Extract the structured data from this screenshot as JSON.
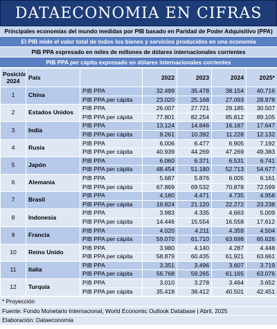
{
  "header": {
    "title": "DATAECONOMIA EN CIFRAS"
  },
  "info": [
    "Principales economías del mundo medidas por PIB basado en Paridad de Poder Adquisitivo (PPA)",
    "El PIB mide el valor total de todos los bienes y servicios producidos en una economía",
    "PIB PPA expresado en miles de millones de dólares internacionales corrientes",
    "PIB PPA per cápita expresado en dólares internacionales corrientes"
  ],
  "table": {
    "columns": [
      "Posición 2024",
      "País",
      "2022",
      "2023",
      "2024",
      "2025*"
    ],
    "row_labels": [
      "PIB PPA",
      "PIB PPA per cápita"
    ],
    "rows": [
      {
        "position": "1",
        "country": "China",
        "ppa": [
          "32.499",
          "35.478",
          "38.154",
          "40.716"
        ],
        "per_capita": [
          "23.020",
          "25.168",
          "27.093",
          "28.978"
        ]
      },
      {
        "position": "2",
        "country": "Estados Unidos",
        "ppa": [
          "26.007",
          "27.721",
          "29.185",
          "30.507"
        ],
        "per_capita": [
          "77.801",
          "82.254",
          "85.812",
          "89.105"
        ]
      },
      {
        "position": "3",
        "country": "India",
        "ppa": [
          "13.124",
          "14.846",
          "16.187",
          "17.647"
        ],
        "per_capita": [
          "9.261",
          "10.392",
          "11.228",
          "12.132"
        ]
      },
      {
        "position": "4",
        "country": "Rusia",
        "ppa": [
          "6.006",
          "6.477",
          "6.905",
          "7.192"
        ],
        "per_capita": [
          "40.939",
          "44.269",
          "47.269",
          "49.383"
        ]
      },
      {
        "position": "5",
        "country": "Japón",
        "ppa": [
          "6.060",
          "6.371",
          "6.531",
          "6.741"
        ],
        "per_capita": [
          "48.454",
          "51.180",
          "52.713",
          "54.677"
        ]
      },
      {
        "position": "6",
        "country": "Alemania",
        "ppa": [
          "5.687",
          "5.876",
          "6.005",
          "6.161"
        ],
        "per_capita": [
          "67.869",
          "69.532",
          "70.878",
          "72.599"
        ]
      },
      {
        "position": "7",
        "country": "Brasil",
        "ppa": [
          "4.180",
          "4.471",
          "4.735",
          "4.958"
        ],
        "per_capita": [
          "19.824",
          "21.120",
          "22.272",
          "23.238"
        ]
      },
      {
        "position": "8",
        "country": "Indonesia",
        "ppa": [
          "3.983",
          "4.335",
          "4.663",
          "5.009"
        ],
        "per_capita": [
          "14.446",
          "15.554",
          "16.558",
          "17.612"
        ]
      },
      {
        "position": "9",
        "country": "Francia",
        "ppa": [
          "4.020",
          "4.211",
          "4.359",
          "4.504"
        ],
        "per_capita": [
          "59.070",
          "61.710",
          "63.698",
          "65.626"
        ]
      },
      {
        "position": "10",
        "country": "Reino Unido",
        "ppa": [
          "3.980",
          "4.140",
          "4.287",
          "4.448"
        ],
        "per_capita": [
          "58.879",
          "60.435",
          "61.921",
          "63.661"
        ]
      },
      {
        "position": "11",
        "country": "Italia",
        "ppa": [
          "3.351",
          "3.496",
          "3.607",
          "3.719"
        ],
        "per_capita": [
          "56.768",
          "59.265",
          "61.165",
          "63.076"
        ]
      },
      {
        "position": "12",
        "country": "Turquía",
        "ppa": [
          "3.010",
          "3.278",
          "3.464",
          "3.652"
        ],
        "per_capita": [
          "35.418",
          "38.412",
          "40.501",
          "42.451"
        ]
      }
    ]
  },
  "footer": [
    "* Proyección",
    "Fuente: Fondo Monetario Internacional, World Economic Outlook Database | Abril, 2025",
    "Elaboración: Dataeconomia"
  ]
}
